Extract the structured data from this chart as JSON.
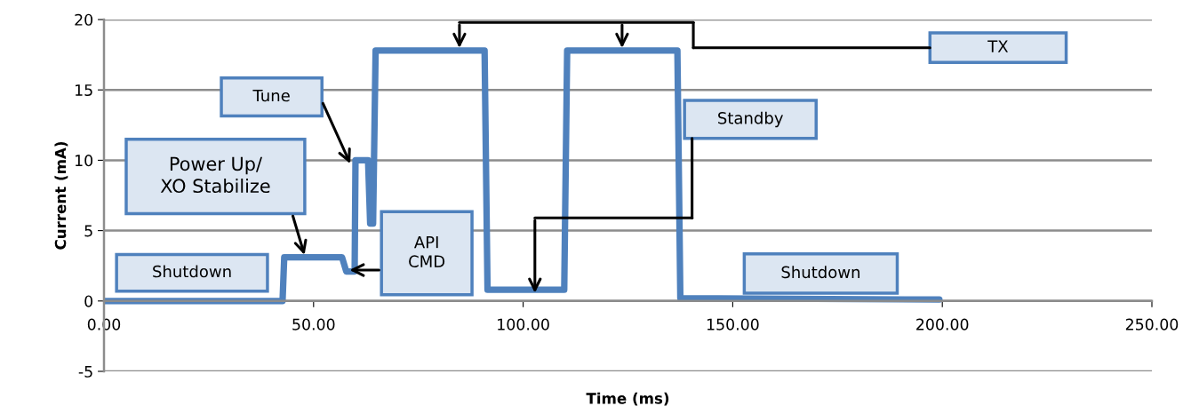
{
  "chart_data": {
    "type": "line",
    "xlabel": "Time (ms)",
    "ylabel": "Current (mA)",
    "series": [
      {
        "color": "#4f81bd",
        "x": [
          0,
          42.6,
          43.0,
          56.8,
          57.8,
          59.8,
          60.0,
          63.0,
          63.5,
          64.2,
          64.8,
          90.8,
          91.5,
          109.8,
          110.5,
          136.8,
          137.5,
          199.3
        ],
        "values": [
          0,
          0,
          3.1,
          3.1,
          2.1,
          2.1,
          10,
          10,
          5.5,
          5.5,
          17.8,
          17.8,
          0.8,
          0.8,
          17.8,
          17.8,
          0.2,
          0.1
        ]
      }
    ],
    "xlim": [
      0,
      250
    ],
    "ylim": [
      -5,
      20
    ],
    "xticks": [
      {
        "value": 0,
        "label": "0.00"
      },
      {
        "value": 50,
        "label": "50.00"
      },
      {
        "value": 100,
        "label": "100.00"
      },
      {
        "value": 150,
        "label": "150.00"
      },
      {
        "value": 200,
        "label": "200.00"
      },
      {
        "value": 250,
        "label": "250.00"
      }
    ],
    "yticks": [
      -5,
      0,
      5,
      10,
      15,
      20
    ],
    "grid": "y",
    "legend": false,
    "marker": "none",
    "line_style": "solid",
    "annotations": [
      "Shutdown",
      "Power Up/\nXO Stabilize",
      "Tune",
      "API\nCMD",
      "TX",
      "Standby",
      "Shutdown"
    ]
  }
}
